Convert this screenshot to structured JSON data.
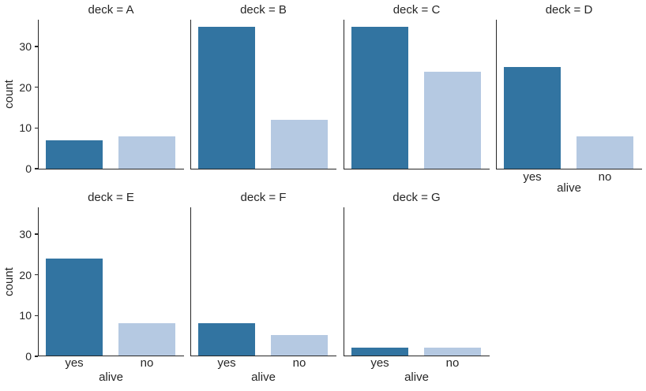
{
  "chart_data": {
    "type": "bar",
    "kind": "faceted-countplot",
    "xlabel": "alive",
    "ylabel": "count",
    "categories": [
      "yes",
      "no"
    ],
    "yticks": [
      0,
      10,
      20,
      30
    ],
    "ylim": [
      0,
      36.75
    ],
    "grid": false,
    "legend": "none",
    "colors": {
      "yes": "#3274a1",
      "no": "#b5c9e2"
    },
    "facets": [
      {
        "title": "deck = A",
        "deck": "A",
        "values": [
          7,
          8
        ]
      },
      {
        "title": "deck = B",
        "deck": "B",
        "values": [
          35,
          12
        ]
      },
      {
        "title": "deck = C",
        "deck": "C",
        "values": [
          35,
          24
        ]
      },
      {
        "title": "deck = D",
        "deck": "D",
        "values": [
          25,
          8
        ]
      },
      {
        "title": "deck = E",
        "deck": "E",
        "values": [
          24,
          8
        ]
      },
      {
        "title": "deck = F",
        "deck": "F",
        "values": [
          8,
          5
        ]
      },
      {
        "title": "deck = G",
        "deck": "G",
        "values": [
          2,
          2
        ]
      }
    ]
  }
}
